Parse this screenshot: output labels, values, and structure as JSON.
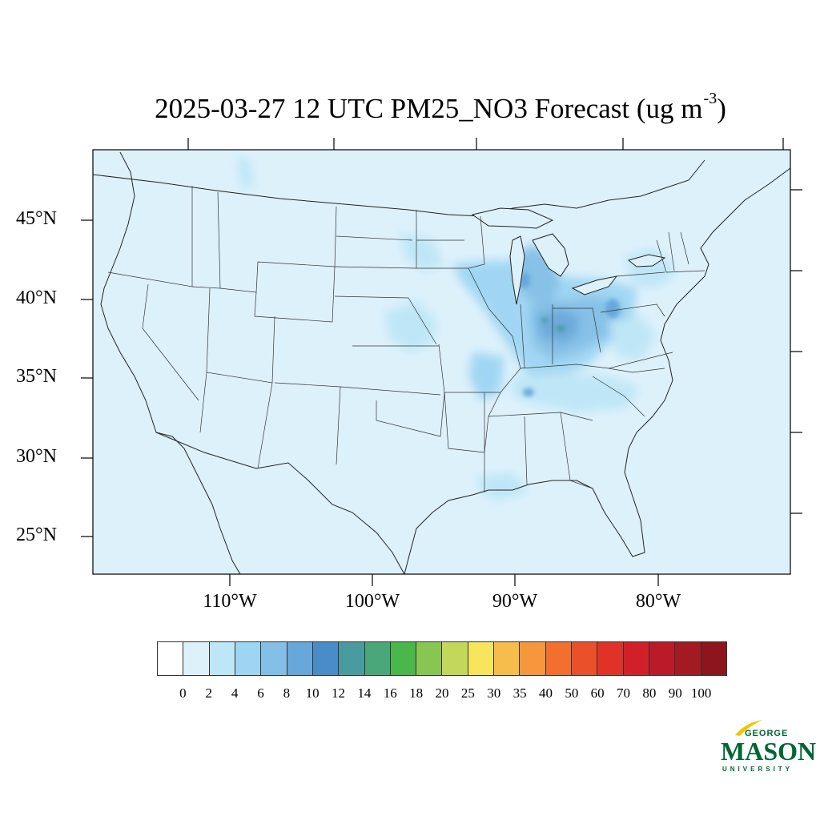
{
  "title": {
    "main": "2025-03-27 12 UTC PM25_NO3 Forecast (ug m",
    "sup": "-3",
    "close": ")"
  },
  "map": {
    "ocean_color": "#ddf1fb",
    "land_base_color": "#ddf1fb",
    "lat_labels": [
      "45°N",
      "40°N",
      "35°N",
      "30°N",
      "25°N"
    ],
    "lon_labels": [
      "110°W",
      "100°W",
      "90°W",
      "80°W"
    ]
  },
  "colorbar": {
    "colors": [
      "#ffffff",
      "#ddf1fb",
      "#bde6f7",
      "#9dd5f3",
      "#83bfe6",
      "#68a7da",
      "#4a8cc8",
      "#4a9ba0",
      "#4aa77a",
      "#4ab74a",
      "#88c651",
      "#c3d85b",
      "#f7e65c",
      "#f7bd4a",
      "#f7973d",
      "#f36f2e",
      "#ea5029",
      "#e03226",
      "#d2202b",
      "#bb1b28",
      "#a41a22",
      "#8c161b"
    ],
    "labels": [
      "0",
      "2",
      "4",
      "6",
      "8",
      "10",
      "12",
      "14",
      "16",
      "18",
      "20",
      "25",
      "30",
      "35",
      "40",
      "50",
      "60",
      "70",
      "80",
      "90",
      "100"
    ]
  },
  "logo": {
    "line1": "GEORGE",
    "line2": "MASON",
    "line3": "UNIVERSITY",
    "color": "#006633",
    "accent": "#f2c500"
  }
}
